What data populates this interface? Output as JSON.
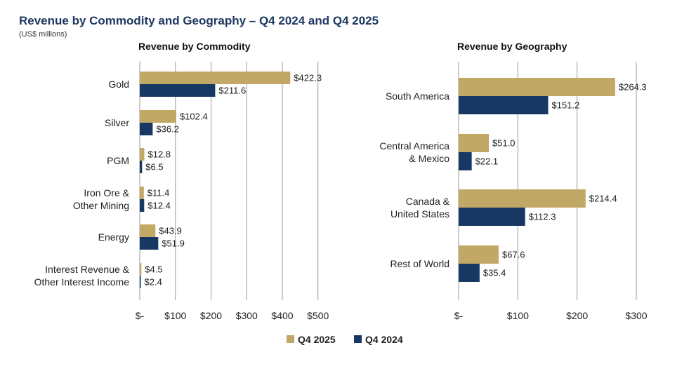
{
  "header": {
    "title": "Revenue by Commodity and Geography – Q4 2024 and Q4 2025",
    "subtitle": "(US$ millions)"
  },
  "colors": {
    "q4_2025": "#c2a866",
    "q4_2024": "#173863",
    "grid": "#9a9a9a"
  },
  "legend": [
    {
      "name": "Q4 2025",
      "color": "#c2a866"
    },
    {
      "name": "Q4 2024",
      "color": "#173863"
    }
  ],
  "chart_data": [
    {
      "type": "bar",
      "orientation": "horizontal",
      "title": "Revenue by Commodity",
      "categories": [
        [
          "Gold"
        ],
        [
          "Silver"
        ],
        [
          "PGM"
        ],
        [
          "Iron Ore &",
          "Other Mining"
        ],
        [
          "Energy"
        ],
        [
          "Interest Revenue &",
          "Other Interest Income"
        ]
      ],
      "series": [
        {
          "name": "Q4 2025",
          "values": [
            422.3,
            102.4,
            12.8,
            11.4,
            43.9,
            4.5
          ],
          "labels": [
            "$422.3",
            "$102.4",
            "$12.8",
            "$11.4",
            "$43.9",
            "$4.5"
          ]
        },
        {
          "name": "Q4 2024",
          "values": [
            211.6,
            36.2,
            6.5,
            12.4,
            51.9,
            2.4
          ],
          "labels": [
            "$211.6",
            "$36.2",
            "$6.5",
            "$12.4",
            "$51.9",
            "$2.4"
          ]
        }
      ],
      "xlim": [
        0,
        500
      ],
      "ticks": [
        0,
        100,
        200,
        300,
        400,
        500
      ],
      "tick_labels": [
        "$-",
        "$100",
        "$200",
        "$300",
        "$400",
        "$500"
      ],
      "grid": true
    },
    {
      "type": "bar",
      "orientation": "horizontal",
      "title": "Revenue by Geography",
      "categories": [
        [
          "South America"
        ],
        [
          "Central America",
          "& Mexico"
        ],
        [
          "Canada &",
          "United States"
        ],
        [
          "Rest of World"
        ]
      ],
      "series": [
        {
          "name": "Q4 2025",
          "values": [
            264.3,
            51.0,
            214.4,
            67.6
          ],
          "labels": [
            "$264.3",
            "$51.0",
            "$214.4",
            "$67.6"
          ]
        },
        {
          "name": "Q4 2024",
          "values": [
            151.2,
            22.1,
            112.3,
            35.4
          ],
          "labels": [
            "$151.2",
            "$22.1",
            "$112.3",
            "$35.4"
          ]
        }
      ],
      "xlim": [
        0,
        300
      ],
      "ticks": [
        0,
        100,
        200,
        300
      ],
      "tick_labels": [
        "$-",
        "$100",
        "$200",
        "$300"
      ],
      "grid": true
    }
  ]
}
